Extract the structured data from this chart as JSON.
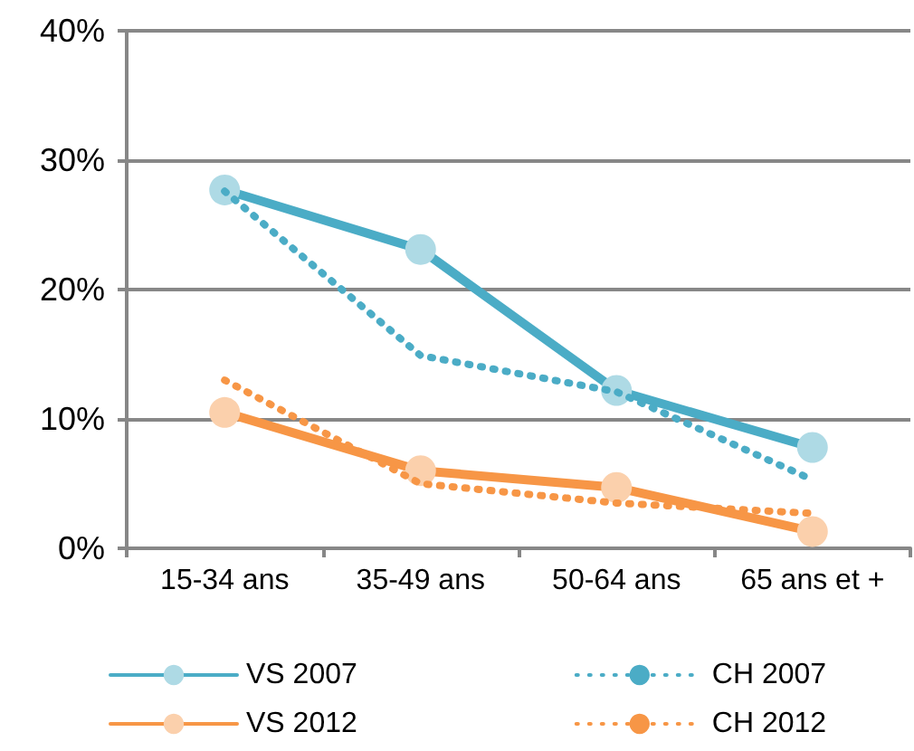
{
  "chart_data": {
    "type": "line",
    "categories": [
      "15-34 ans",
      "35-49 ans",
      "50-64 ans",
      "65 ans et +"
    ],
    "series": [
      {
        "name": "VS 2007",
        "color": "#4bacc6",
        "values": [
          27.7,
          23.1,
          12.2,
          7.8
        ],
        "marker": "circle",
        "line_style": "solid"
      },
      {
        "name": "CH 2007",
        "color": "#4bacc6",
        "values": [
          27.6,
          14.9,
          12.1,
          5.3
        ],
        "marker": "none",
        "line_style": "dotted"
      },
      {
        "name": "VS 2012",
        "color": "#f79646",
        "values": [
          10.5,
          6.0,
          4.7,
          1.3
        ],
        "marker": "circle",
        "line_style": "solid"
      },
      {
        "name": "CH 2012",
        "color": "#f79646",
        "values": [
          13.0,
          5.0,
          3.5,
          2.7
        ],
        "marker": "none",
        "line_style": "dotted"
      }
    ],
    "ylim": [
      0,
      40
    ],
    "yticks": [
      {
        "value": 0,
        "label": "0%"
      },
      {
        "value": 10,
        "label": "10%"
      },
      {
        "value": 20,
        "label": "20%"
      },
      {
        "value": 30,
        "label": "30%"
      },
      {
        "value": 40,
        "label": "40%"
      }
    ],
    "grid": "y",
    "legend": "bottom"
  }
}
